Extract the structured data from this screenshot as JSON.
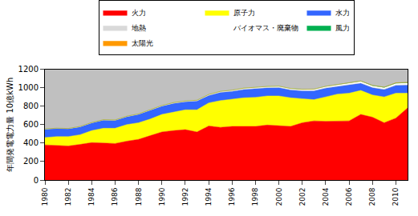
{
  "chart_data": {
    "type": "area",
    "stacked": true,
    "y_label": "年間発電電力量 10億kWh",
    "x": [
      1980,
      1981,
      1982,
      1983,
      1984,
      1985,
      1986,
      1987,
      1988,
      1989,
      1990,
      1991,
      1992,
      1993,
      1994,
      1995,
      1996,
      1997,
      1998,
      1999,
      2000,
      2001,
      2002,
      2003,
      2004,
      2005,
      2006,
      2007,
      2008,
      2009,
      2010,
      2011
    ],
    "series": [
      {
        "name": "火力",
        "color": "#ff0000",
        "values": [
          380,
          375,
          368,
          385,
          405,
          400,
          395,
          420,
          440,
          480,
          520,
          535,
          545,
          520,
          585,
          570,
          580,
          580,
          580,
          595,
          590,
          580,
          620,
          640,
          635,
          640,
          640,
          710,
          680,
          620,
          670,
          780
        ]
      },
      {
        "name": "原子力",
        "color": "#ffff00",
        "values": [
          80,
          95,
          102,
          105,
          130,
          160,
          165,
          180,
          180,
          180,
          190,
          200,
          215,
          240,
          250,
          290,
          295,
          310,
          315,
          315,
          320,
          310,
          260,
          230,
          265,
          290,
          300,
          260,
          240,
          280,
          270,
          160
        ]
      },
      {
        "name": "水力",
        "color": "#3366ff",
        "values": [
          90,
          88,
          85,
          85,
          82,
          88,
          85,
          85,
          90,
          92,
          90,
          95,
          88,
          95,
          80,
          88,
          85,
          90,
          95,
          88,
          90,
          85,
          85,
          95,
          95,
          80,
          90,
          78,
          80,
          80,
          85,
          88
        ]
      },
      {
        "name": "地熱",
        "color": "#d9d9d9",
        "values": [
          1,
          1,
          1,
          2,
          2,
          2,
          2,
          2,
          2,
          2,
          2,
          2,
          2,
          2,
          3,
          3,
          3,
          4,
          4,
          3,
          3,
          3,
          3,
          3,
          3,
          3,
          3,
          3,
          3,
          3,
          3,
          3
        ]
      },
      {
        "name": "バイオマス・廃棄物",
        "color": "#ffffff",
        "values": [
          2,
          2,
          2,
          3,
          3,
          3,
          3,
          4,
          4,
          5,
          5,
          6,
          6,
          7,
          8,
          9,
          10,
          11,
          12,
          12,
          13,
          13,
          14,
          15,
          15,
          16,
          17,
          18,
          18,
          18,
          19,
          20
        ]
      },
      {
        "name": "風力",
        "color": "#00b050",
        "values": [
          0,
          0,
          0,
          0,
          0,
          0,
          0,
          0,
          0,
          0,
          0,
          0,
          0,
          0,
          0,
          0,
          0,
          0,
          0,
          0,
          0.1,
          0.3,
          0.5,
          1,
          1.5,
          2,
          2.5,
          3,
          3,
          3.5,
          4,
          4.5
        ]
      },
      {
        "name": "太陽光",
        "color": "#ff9900",
        "values": [
          0,
          0,
          0,
          0,
          0,
          0,
          0,
          0,
          0,
          0,
          0,
          0,
          0,
          0,
          0,
          0,
          0,
          0,
          0,
          0,
          0,
          0,
          0,
          0,
          0,
          0.1,
          0.2,
          0.3,
          0.5,
          0.8,
          1.5,
          2.5
        ]
      }
    ],
    "xlim": [
      1980,
      2011
    ],
    "xticks": [
      1980,
      1982,
      1984,
      1986,
      1988,
      1990,
      1992,
      1994,
      1996,
      1998,
      2000,
      2002,
      2004,
      2006,
      2008,
      2010
    ],
    "ylim": [
      0,
      1200
    ],
    "yticks": [
      0,
      200,
      400,
      600,
      800,
      1000,
      1200
    ],
    "grid": false,
    "legend": "top"
  }
}
